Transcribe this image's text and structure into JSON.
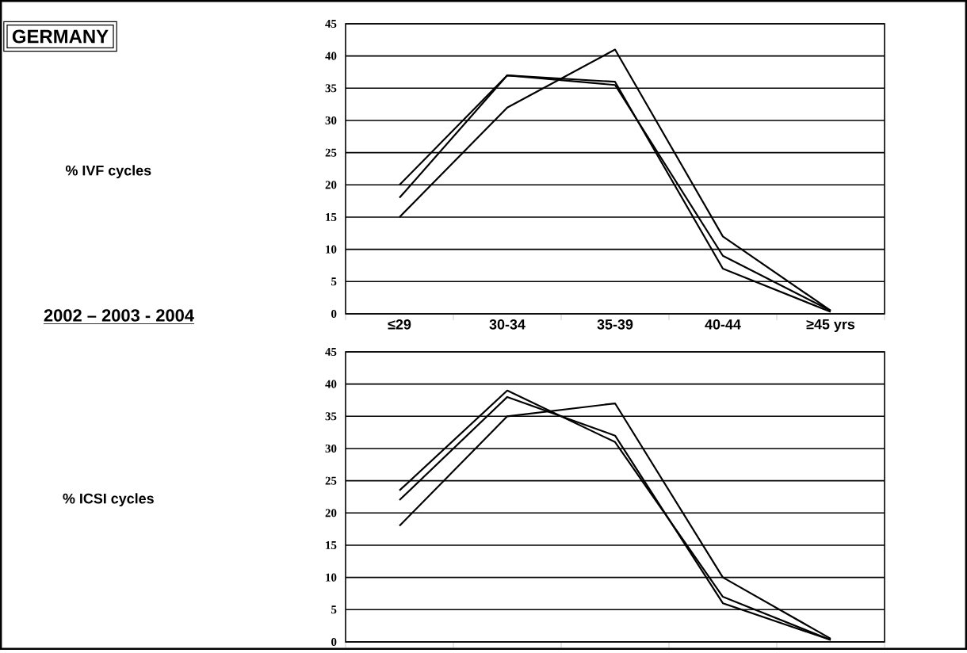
{
  "chart_data": [
    {
      "type": "other",
      "title": "GERMANY",
      "subtitle": "2002 – 2003 - 2004"
    },
    {
      "type": "line",
      "ylabel": "% IVF cycles",
      "categories": [
        "≤29",
        "30-34",
        "35-39",
        "40-44",
        "≥45 yrs"
      ],
      "series": [
        {
          "color": "#000000",
          "values": [
            20,
            37,
            35.5,
            9,
            0.5
          ]
        },
        {
          "color": "#000000",
          "values": [
            18,
            37,
            36,
            7,
            0.3
          ]
        },
        {
          "color": "#000000",
          "values": [
            15,
            32,
            41,
            12,
            0.5
          ]
        }
      ],
      "ylim": [
        0,
        45
      ],
      "yticks": [
        0,
        5,
        10,
        15,
        20,
        25,
        30,
        35,
        40,
        45
      ],
      "grid": "y",
      "marker": "none"
    },
    {
      "type": "line",
      "ylabel": "% ICSI cycles",
      "categories": [
        null,
        null,
        null,
        null,
        null
      ],
      "series": [
        {
          "color": "#000000",
          "values": [
            23.5,
            39,
            31,
            7,
            0.3
          ]
        },
        {
          "color": "#000000",
          "values": [
            22,
            38,
            32,
            6,
            0.3
          ]
        },
        {
          "color": "#000000",
          "values": [
            18,
            35,
            37,
            10,
            0.5
          ]
        }
      ],
      "ylim": [
        0,
        45
      ],
      "yticks": [
        0,
        5,
        10,
        15,
        20,
        25,
        30,
        35,
        40,
        45
      ],
      "grid": "y",
      "marker": "none",
      "tick_labels": "y"
    }
  ]
}
